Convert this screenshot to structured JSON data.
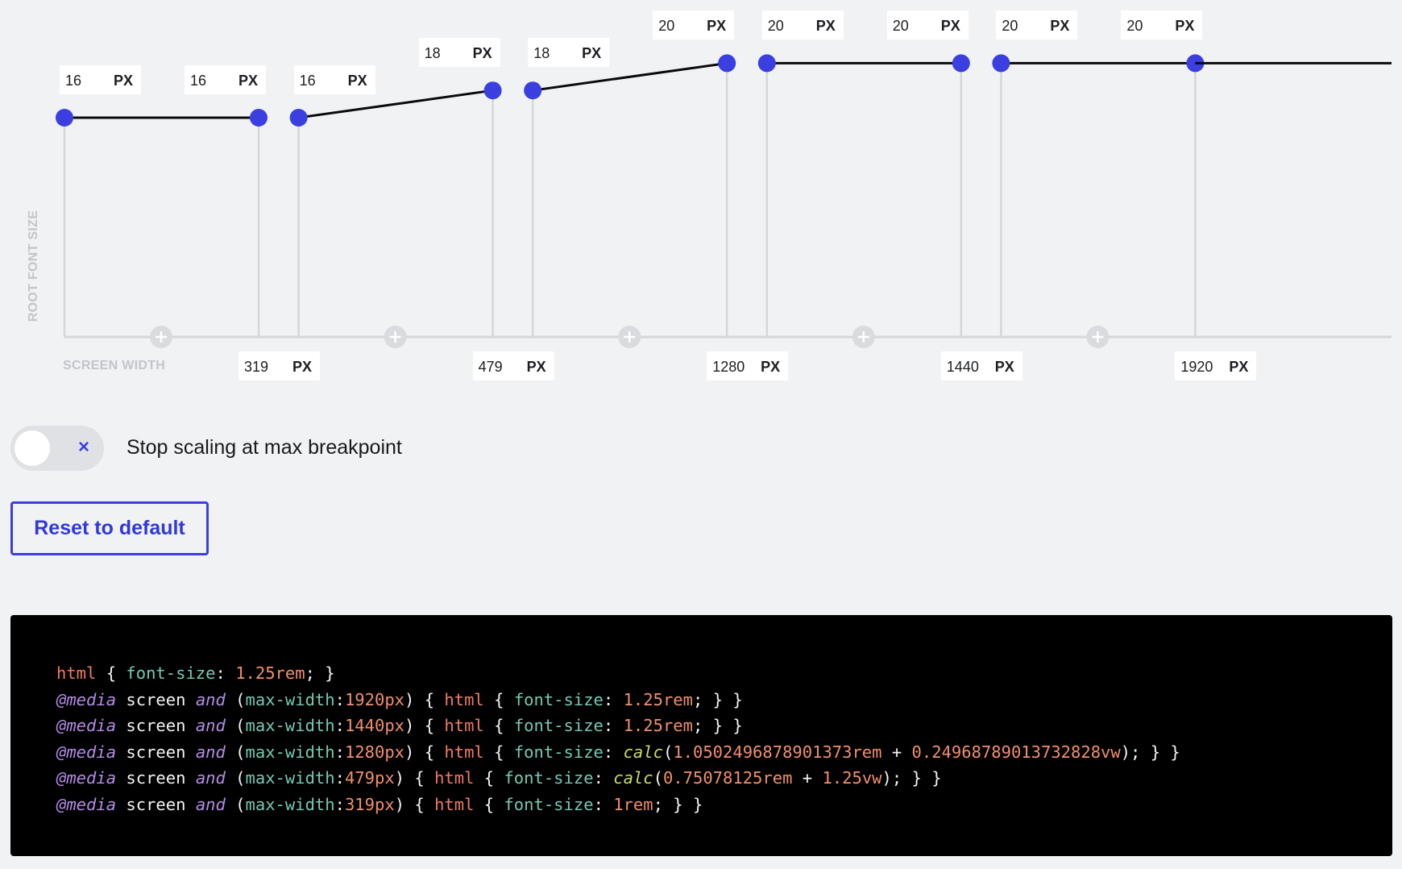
{
  "chart_data": {
    "type": "line",
    "xlabel": "SCREEN WIDTH",
    "ylabel": "ROOT FONT SIZE",
    "unit": "PX",
    "segments": [
      {
        "start": {
          "size": 16
        },
        "end": {
          "size": 16,
          "width": 319
        }
      },
      {
        "start": {
          "size": 16
        },
        "end": {
          "size": 18,
          "width": 479
        }
      },
      {
        "start": {
          "size": 18
        },
        "end": {
          "size": 20,
          "width": 1280
        }
      },
      {
        "start": {
          "size": 20
        },
        "end": {
          "size": 20,
          "width": 1440
        }
      },
      {
        "start": {
          "size": 20
        },
        "end": {
          "size": 20,
          "width": 1920
        }
      }
    ],
    "add_breakpoint_icons": 5
  },
  "colors": {
    "accent": "#3b3fe0",
    "grid": "#d4d6da",
    "background": "#f1f2f4",
    "code_background": "#000000"
  },
  "icons": {
    "add_breakpoint": "plus-circle-icon",
    "toggle_off": "close-icon"
  },
  "toggle": {
    "label": "Stop scaling at max breakpoint",
    "on": false,
    "off_symbol": "×"
  },
  "reset_button": {
    "label": "Reset to default"
  },
  "code": {
    "lines": [
      [
        [
          "tag",
          "html"
        ],
        [
          "plain",
          " { "
        ],
        [
          "prop",
          "font-size"
        ],
        [
          "plain",
          ": "
        ],
        [
          "num",
          "1.25rem"
        ],
        [
          "plain",
          "; }"
        ]
      ],
      [
        [
          "at",
          "@media"
        ],
        [
          "plain",
          " screen "
        ],
        [
          "and",
          "and"
        ],
        [
          "plain",
          " ("
        ],
        [
          "prop",
          "max-width"
        ],
        [
          "plain",
          ":"
        ],
        [
          "num",
          "1920px"
        ],
        [
          "plain",
          ") { "
        ],
        [
          "tag",
          "html"
        ],
        [
          "plain",
          " { "
        ],
        [
          "prop",
          "font-size"
        ],
        [
          "plain",
          ": "
        ],
        [
          "num",
          "1.25rem"
        ],
        [
          "plain",
          "; } }"
        ]
      ],
      [
        [
          "at",
          "@media"
        ],
        [
          "plain",
          " screen "
        ],
        [
          "and",
          "and"
        ],
        [
          "plain",
          " ("
        ],
        [
          "prop",
          "max-width"
        ],
        [
          "plain",
          ":"
        ],
        [
          "num",
          "1440px"
        ],
        [
          "plain",
          ") { "
        ],
        [
          "tag",
          "html"
        ],
        [
          "plain",
          " { "
        ],
        [
          "prop",
          "font-size"
        ],
        [
          "plain",
          ": "
        ],
        [
          "num",
          "1.25rem"
        ],
        [
          "plain",
          "; } }"
        ]
      ],
      [
        [
          "at",
          "@media"
        ],
        [
          "plain",
          " screen "
        ],
        [
          "and",
          "and"
        ],
        [
          "plain",
          " ("
        ],
        [
          "prop",
          "max-width"
        ],
        [
          "plain",
          ":"
        ],
        [
          "num",
          "1280px"
        ],
        [
          "plain",
          ") { "
        ],
        [
          "tag",
          "html"
        ],
        [
          "plain",
          " { "
        ],
        [
          "prop",
          "font-size"
        ],
        [
          "plain",
          ": "
        ],
        [
          "fn",
          "calc"
        ],
        [
          "plain",
          "("
        ],
        [
          "num",
          "1.0502496878901373rem"
        ],
        [
          "plain",
          " + "
        ],
        [
          "num",
          "0.24968789013732828vw"
        ],
        [
          "plain",
          "); } }"
        ]
      ],
      [
        [
          "at",
          "@media"
        ],
        [
          "plain",
          " screen "
        ],
        [
          "and",
          "and"
        ],
        [
          "plain",
          " ("
        ],
        [
          "prop",
          "max-width"
        ],
        [
          "plain",
          ":"
        ],
        [
          "num",
          "479px"
        ],
        [
          "plain",
          ") { "
        ],
        [
          "tag",
          "html"
        ],
        [
          "plain",
          " { "
        ],
        [
          "prop",
          "font-size"
        ],
        [
          "plain",
          ": "
        ],
        [
          "fn",
          "calc"
        ],
        [
          "plain",
          "("
        ],
        [
          "num",
          "0.75078125rem"
        ],
        [
          "plain",
          " + "
        ],
        [
          "num",
          "1.25vw"
        ],
        [
          "plain",
          "); } }"
        ]
      ],
      [
        [
          "at",
          "@media"
        ],
        [
          "plain",
          " screen "
        ],
        [
          "and",
          "and"
        ],
        [
          "plain",
          " ("
        ],
        [
          "prop",
          "max-width"
        ],
        [
          "plain",
          ":"
        ],
        [
          "num",
          "319px"
        ],
        [
          "plain",
          ") { "
        ],
        [
          "tag",
          "html"
        ],
        [
          "plain",
          " { "
        ],
        [
          "prop",
          "font-size"
        ],
        [
          "plain",
          ": "
        ],
        [
          "num",
          "1rem"
        ],
        [
          "plain",
          "; } }"
        ]
      ]
    ]
  }
}
